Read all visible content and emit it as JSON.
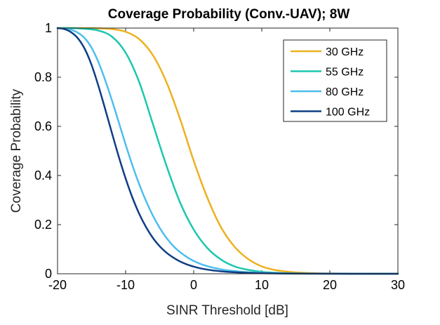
{
  "chart_data": {
    "type": "line",
    "title": "Coverage Probability (Conv.-UAV); 8W",
    "xlabel": "SINR Threshold [dB]",
    "ylabel": "Coverage Probability",
    "xlim": [
      -20,
      30
    ],
    "ylim": [
      0,
      1
    ],
    "xticks": [
      -20,
      -10,
      0,
      10,
      20,
      30
    ],
    "yticks": [
      0,
      0.2,
      0.4,
      0.6,
      0.8,
      1
    ],
    "xtick_labels": [
      "-20",
      "-10",
      "0",
      "10",
      "20",
      "30"
    ],
    "ytick_labels": [
      "0",
      "0.2",
      "0.4",
      "0.6",
      "0.8",
      "1"
    ],
    "legend_position": "top-right",
    "series": [
      {
        "name": "30 GHz",
        "color": "#EDB120",
        "x": [
          -20,
          -16,
          -14,
          -12,
          -10,
          -8,
          -6,
          -4,
          -2,
          0,
          2,
          4,
          6,
          8,
          10,
          12,
          14,
          16,
          18,
          20,
          25,
          30
        ],
        "y": [
          1.0,
          1.0,
          0.999,
          0.996,
          0.985,
          0.955,
          0.89,
          0.78,
          0.63,
          0.46,
          0.31,
          0.19,
          0.11,
          0.06,
          0.03,
          0.015,
          0.008,
          0.004,
          0.002,
          0.001,
          0.0003,
          0.0
        ]
      },
      {
        "name": "55 GHz",
        "color": "#1CC7AE",
        "x": [
          -20,
          -18,
          -16,
          -14,
          -12,
          -10,
          -8,
          -6,
          -4,
          -2,
          0,
          2,
          4,
          6,
          8,
          10,
          12,
          14,
          16,
          20,
          25,
          30
        ],
        "y": [
          1.0,
          1.0,
          0.997,
          0.99,
          0.965,
          0.9,
          0.78,
          0.61,
          0.44,
          0.29,
          0.18,
          0.105,
          0.058,
          0.03,
          0.016,
          0.008,
          0.004,
          0.002,
          0.001,
          0.0003,
          0.0,
          0.0
        ]
      },
      {
        "name": "80 GHz",
        "color": "#4DBEEE",
        "x": [
          -20,
          -19,
          -18,
          -17,
          -16,
          -15,
          -14,
          -13,
          -12,
          -11,
          -10,
          -9,
          -8,
          -7,
          -6,
          -5,
          -4,
          -3,
          -2,
          -1,
          0,
          1,
          2,
          3,
          4,
          5,
          6,
          8,
          10,
          12,
          14,
          16,
          20,
          25,
          30
        ],
        "y": [
          1.0,
          0.998,
          0.993,
          0.981,
          0.959,
          0.92,
          0.862,
          0.788,
          0.705,
          0.616,
          0.526,
          0.441,
          0.364,
          0.296,
          0.237,
          0.187,
          0.146,
          0.113,
          0.088,
          0.068,
          0.052,
          0.04,
          0.031,
          0.024,
          0.018,
          0.014,
          0.011,
          0.006,
          0.004,
          0.002,
          0.001,
          0.0006,
          0.0002,
          0.0,
          0.0
        ]
      },
      {
        "name": "100 GHz",
        "color": "#0E3E86",
        "x": [
          -20,
          -19,
          -18,
          -17,
          -16,
          -15,
          -14,
          -13,
          -12,
          -11,
          -10,
          -9,
          -8,
          -7,
          -6,
          -5,
          -4,
          -3,
          -2,
          -1,
          0,
          1,
          2,
          3,
          4,
          6,
          8,
          10,
          14,
          20,
          25,
          30
        ],
        "y": [
          1.0,
          0.996,
          0.983,
          0.958,
          0.915,
          0.85,
          0.765,
          0.67,
          0.572,
          0.476,
          0.388,
          0.31,
          0.244,
          0.19,
          0.146,
          0.112,
          0.086,
          0.066,
          0.05,
          0.038,
          0.029,
          0.022,
          0.017,
          0.013,
          0.01,
          0.006,
          0.004,
          0.002,
          0.0008,
          0.0002,
          0.0,
          0.0
        ]
      }
    ]
  }
}
